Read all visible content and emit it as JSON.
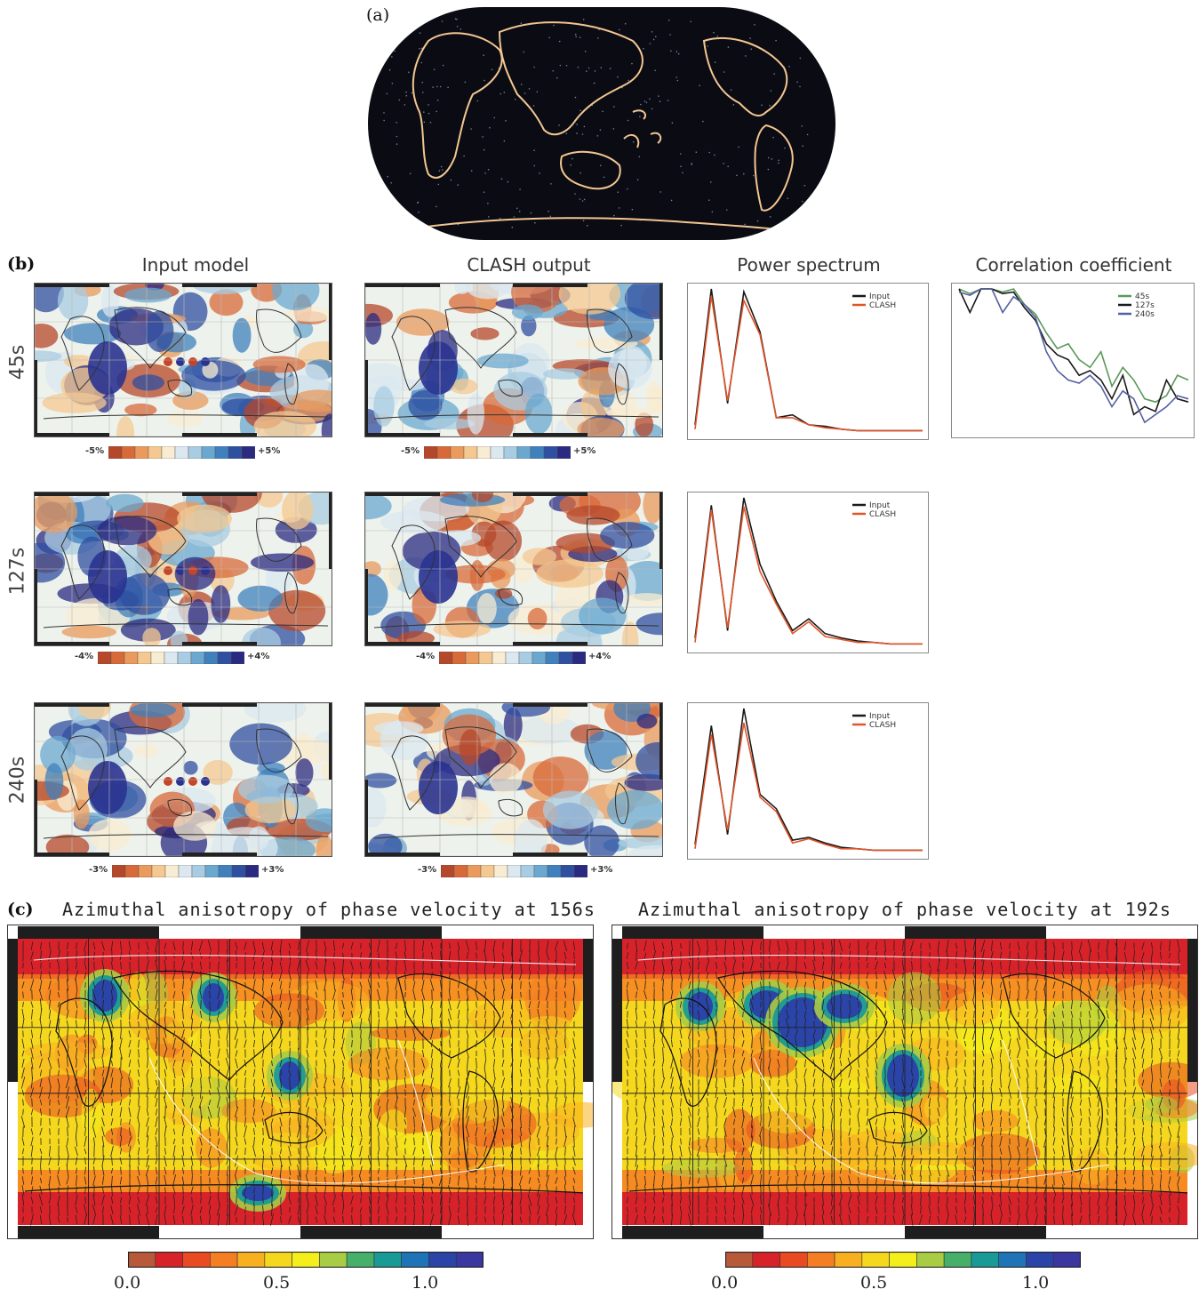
{
  "panel_a": {
    "letter": "(a)"
  },
  "panel_b": {
    "letter": "(b)",
    "column_titles": [
      "Input model",
      "CLASH output",
      "Power spectrum",
      "Correlation coefficient"
    ],
    "rows": [
      {
        "label": "45s",
        "cbar_min": "-5%",
        "cbar_max": "+5%"
      },
      {
        "label": "127s",
        "cbar_min": "-4%",
        "cbar_max": "+4%"
      },
      {
        "label": "240s",
        "cbar_min": "-3%",
        "cbar_max": "+3%"
      }
    ],
    "power_legend": [
      "Input",
      "CLASH"
    ],
    "corr_legend": [
      "45s",
      "127s",
      "240s"
    ]
  },
  "panel_c": {
    "letter": "(c)",
    "left_title": "Azimuthal anisotropy of phase velocity at 156s",
    "right_title": "Azimuthal anisotropy of phase velocity at 192s",
    "cbar_ticks": [
      "0.0",
      "0.5",
      "1.0"
    ]
  },
  "colors": {
    "ocean_dark": "#0b0b14",
    "coast": "#f2c690",
    "input_line": "#1a1a1a",
    "clash_line": "#e0542a",
    "green_line": "#5a9a5a",
    "blue_line": "#5560a0"
  },
  "chart_data": [
    {
      "type": "line",
      "panel": "power-spectrum-45s",
      "series": [
        {
          "name": "Input",
          "values": [
            0.05,
            1.0,
            0.2,
            0.98,
            0.7,
            0.1,
            0.12,
            0.05,
            0.04,
            0.02,
            0.01,
            0.01,
            0.01,
            0.01,
            0.01
          ]
        },
        {
          "name": "CLASH",
          "values": [
            0.02,
            0.95,
            0.22,
            0.92,
            0.68,
            0.1,
            0.1,
            0.05,
            0.03,
            0.02,
            0.01,
            0.01,
            0.01,
            0.01,
            0.01
          ]
        }
      ]
    },
    {
      "type": "line",
      "panel": "power-spectrum-127s",
      "series": [
        {
          "name": "Input",
          "values": [
            0.05,
            0.95,
            0.1,
            1.0,
            0.55,
            0.3,
            0.1,
            0.18,
            0.08,
            0.05,
            0.03,
            0.02,
            0.01,
            0.01,
            0.01
          ]
        },
        {
          "name": "CLASH",
          "values": [
            0.02,
            0.92,
            0.12,
            0.94,
            0.5,
            0.28,
            0.08,
            0.16,
            0.06,
            0.04,
            0.02,
            0.02,
            0.01,
            0.01,
            0.01
          ]
        }
      ]
    },
    {
      "type": "line",
      "panel": "power-spectrum-240s",
      "series": [
        {
          "name": "Input",
          "values": [
            0.05,
            0.88,
            0.12,
            1.0,
            0.4,
            0.3,
            0.08,
            0.1,
            0.06,
            0.03,
            0.02,
            0.01,
            0.01,
            0.01,
            0.01
          ]
        },
        {
          "name": "CLASH",
          "values": [
            0.02,
            0.82,
            0.15,
            0.9,
            0.38,
            0.28,
            0.06,
            0.09,
            0.05,
            0.02,
            0.02,
            0.01,
            0.01,
            0.01,
            0.01
          ]
        }
      ]
    },
    {
      "type": "line",
      "panel": "correlation-coefficient",
      "series": [
        {
          "name": "45s",
          "values": [
            1.0,
            0.97,
            1.0,
            1.0,
            0.98,
            1.0,
            0.9,
            0.84,
            0.72,
            0.62,
            0.65,
            0.55,
            0.5,
            0.6,
            0.38,
            0.5,
            0.42,
            0.3,
            0.28,
            0.32,
            0.45,
            0.42
          ]
        },
        {
          "name": "127s",
          "values": [
            1.0,
            0.85,
            1.0,
            1.0,
            0.97,
            0.98,
            0.88,
            0.8,
            0.65,
            0.58,
            0.55,
            0.45,
            0.48,
            0.42,
            0.3,
            0.45,
            0.2,
            0.25,
            0.22,
            0.42,
            0.3,
            0.28
          ]
        },
        {
          "name": "240s",
          "values": [
            0.98,
            0.96,
            1.0,
            1.0,
            0.85,
            0.95,
            0.9,
            0.82,
            0.6,
            0.48,
            0.42,
            0.4,
            0.45,
            0.38,
            0.25,
            0.35,
            0.3,
            0.15,
            0.2,
            0.25,
            0.32,
            0.3
          ]
        }
      ]
    }
  ]
}
